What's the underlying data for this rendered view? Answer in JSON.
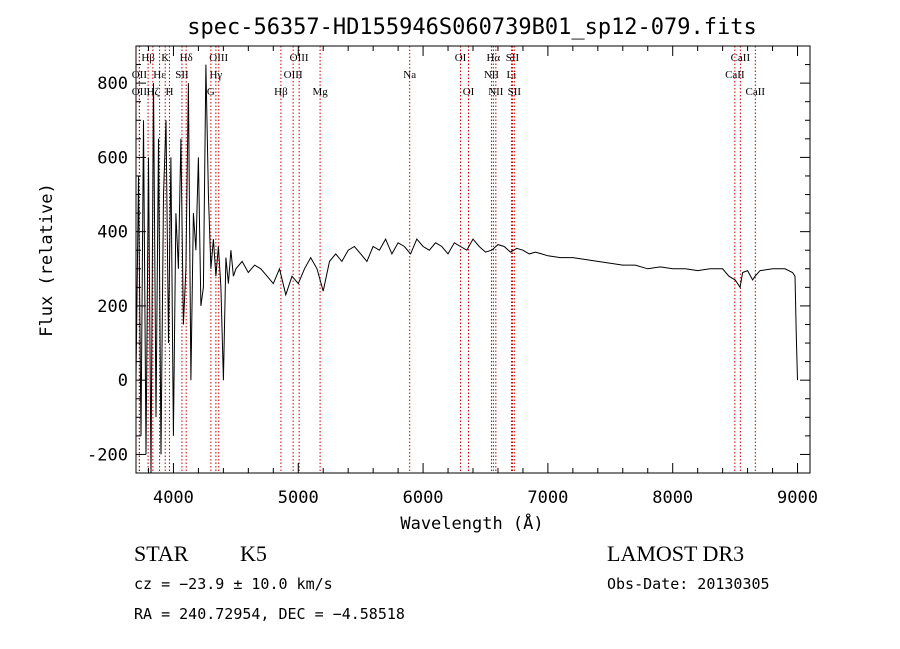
{
  "chart_data": {
    "type": "line",
    "title": "spec-56357-HD155946S060739B01_sp12-079.fits",
    "xlabel": "Wavelength (Å)",
    "ylabel": "Flux (relative)",
    "xlim": [
      3700,
      9100
    ],
    "ylim": [
      -250,
      900
    ],
    "xticks": [
      4000,
      5000,
      6000,
      7000,
      8000,
      9000
    ],
    "yticks": [
      -200,
      0,
      200,
      400,
      600,
      800
    ],
    "series": [
      {
        "name": "flux",
        "x": [
          3700,
          3720,
          3740,
          3760,
          3780,
          3800,
          3820,
          3840,
          3860,
          3880,
          3900,
          3920,
          3940,
          3960,
          3980,
          4000,
          4020,
          4040,
          4060,
          4080,
          4100,
          4120,
          4140,
          4160,
          4180,
          4200,
          4220,
          4240,
          4260,
          4280,
          4300,
          4320,
          4340,
          4360,
          4380,
          4400,
          4420,
          4440,
          4460,
          4480,
          4500,
          4550,
          4600,
          4650,
          4700,
          4750,
          4800,
          4850,
          4900,
          4950,
          5000,
          5050,
          5100,
          5150,
          5200,
          5250,
          5300,
          5350,
          5400,
          5450,
          5500,
          5550,
          5600,
          5650,
          5700,
          5750,
          5800,
          5850,
          5900,
          5950,
          6000,
          6050,
          6100,
          6150,
          6200,
          6250,
          6300,
          6350,
          6400,
          6450,
          6500,
          6550,
          6600,
          6650,
          6700,
          6750,
          6800,
          6850,
          6900,
          6950,
          7000,
          7100,
          7200,
          7300,
          7400,
          7500,
          7600,
          7700,
          7800,
          7900,
          8000,
          8100,
          8200,
          8300,
          8400,
          8450,
          8500,
          8540,
          8560,
          8600,
          8640,
          8660,
          8700,
          8800,
          8900,
          8960,
          8980,
          8990,
          9000
        ],
        "y": [
          0,
          550,
          -150,
          700,
          -200,
          600,
          -250,
          800,
          -100,
          650,
          -200,
          500,
          700,
          100,
          600,
          -150,
          450,
          300,
          650,
          150,
          300,
          800,
          0,
          450,
          350,
          600,
          200,
          250,
          850,
          500,
          300,
          380,
          280,
          360,
          250,
          0,
          330,
          260,
          350,
          280,
          300,
          320,
          290,
          310,
          300,
          280,
          260,
          300,
          230,
          280,
          260,
          300,
          330,
          300,
          240,
          320,
          340,
          320,
          350,
          360,
          340,
          320,
          360,
          350,
          380,
          340,
          370,
          360,
          340,
          380,
          360,
          350,
          370,
          360,
          340,
          370,
          360,
          350,
          380,
          360,
          345,
          350,
          365,
          360,
          345,
          355,
          350,
          340,
          345,
          340,
          335,
          330,
          330,
          325,
          320,
          315,
          310,
          310,
          300,
          305,
          300,
          300,
          295,
          300,
          300,
          280,
          270,
          250,
          290,
          295,
          270,
          280,
          295,
          300,
          300,
          290,
          280,
          120,
          0
        ]
      }
    ],
    "lines": [
      {
        "label": "Hβ",
        "x": 4861,
        "row": 3
      },
      {
        "label": "OIII",
        "x": 4959,
        "row": 2
      },
      {
        "label": "OIII",
        "x": 5007,
        "row": 1
      },
      {
        "label": "Mg",
        "x": 5175,
        "row": 3
      },
      {
        "label": "Na",
        "x": 5893,
        "row": 2
      },
      {
        "label": "OI",
        "x": 6300,
        "row": 1
      },
      {
        "label": "OI",
        "x": 6364,
        "row": 3
      },
      {
        "label": "Hα",
        "x": 6563,
        "row": 1
      },
      {
        "label": "NII",
        "x": 6548,
        "row": 2
      },
      {
        "label": "NII",
        "x": 6583,
        "row": 3
      },
      {
        "label": "SII",
        "x": 6716,
        "row": 1
      },
      {
        "label": "Li",
        "x": 6708,
        "row": 2
      },
      {
        "label": "SII",
        "x": 6731,
        "row": 3
      },
      {
        "label": "CaII",
        "x": 8542,
        "row": 1
      },
      {
        "label": "CaII",
        "x": 8498,
        "row": 2
      },
      {
        "label": "CaII",
        "x": 8662,
        "row": 3
      },
      {
        "label": "OIII",
        "x": 4363,
        "row": 1
      },
      {
        "label": "Hγ",
        "x": 4340,
        "row": 2
      },
      {
        "label": "G",
        "x": 4300,
        "row": 3
      },
      {
        "label": "Hδ",
        "x": 4102,
        "row": 1
      },
      {
        "label": "SII",
        "x": 4068,
        "row": 2
      },
      {
        "label": "Hβ",
        "x": 3797,
        "row": 1
      },
      {
        "label": "K",
        "x": 3934,
        "row": 1
      },
      {
        "label": "H",
        "x": 3968,
        "row": 3
      },
      {
        "label": "OII",
        "x": 3727,
        "row": 2
      },
      {
        "label": "OII",
        "x": 3727,
        "row": 3
      },
      {
        "label": "Hε",
        "x": 3889,
        "row": 2
      },
      {
        "label": "Hζ",
        "x": 3835,
        "row": 3
      }
    ]
  },
  "info": {
    "object_type": "STAR",
    "subclass": "K5",
    "survey": "LAMOST DR3",
    "cz": "cz = −23.9 ± 10.0 km/s",
    "obs_date": "Obs-Date: 20130305",
    "coords": "RA = 240.72954, DEC =  −4.58518"
  }
}
